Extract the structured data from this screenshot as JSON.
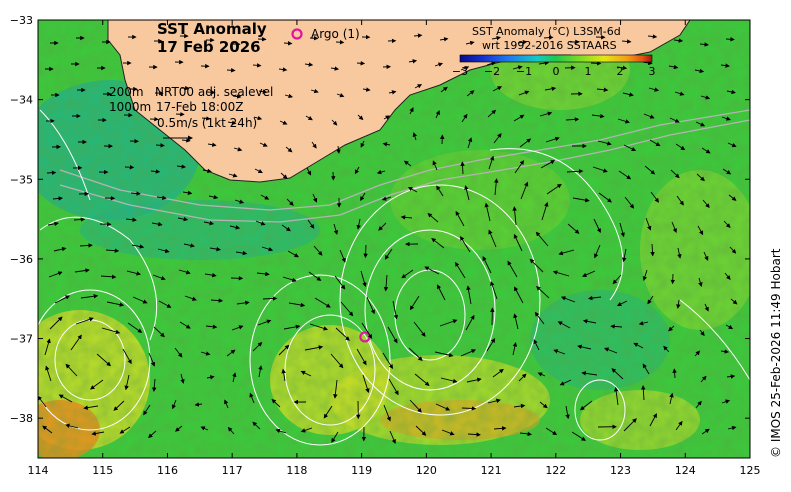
{
  "title": {
    "line1": "SST Anomaly",
    "line2": "17 Feb 2026"
  },
  "argo_legend": {
    "symbol": "O",
    "label": "Argo (1)",
    "color": "#e0169c"
  },
  "info": {
    "line1_depth": "200m",
    "line1_text": "NRT00 adj. sealevel",
    "line2_depth": "1000m",
    "line2_text": "17-Feb 18:00Z",
    "line3_text": "0.5m/s (1kt 24h)"
  },
  "colorbar": {
    "title_line1": "SST Anomaly (°C) L3SM-6d",
    "title_line2": "wrt 1992-2016 SSTAARS",
    "tick_labels": [
      "−3",
      "−2",
      "−1",
      "0",
      "1",
      "2",
      "3"
    ],
    "range": [
      -3,
      3
    ],
    "colors": [
      "#0a0a8c",
      "#1432d2",
      "#1e78f0",
      "#14c8c8",
      "#1ec850",
      "#78dc28",
      "#e6e614",
      "#f0a014",
      "#e65014",
      "#a01414"
    ]
  },
  "credit": "© IMOS 25-Feb-2026 11:49 Hobart",
  "axes": {
    "x_ticks": [
      "114",
      "115",
      "116",
      "117",
      "118",
      "119",
      "120",
      "121",
      "122",
      "123",
      "124",
      "125"
    ],
    "y_ticks": [
      "−33",
      "−34",
      "−35",
      "−36",
      "−37",
      "−38"
    ],
    "lon_range": [
      114,
      125
    ],
    "lat_range": [
      -38.5,
      -33
    ]
  },
  "argo_float": {
    "lon": 119.05,
    "lat": -36.98
  },
  "colors": {
    "land": "#f8c89e",
    "sst_green": "#3cc83c",
    "sst_light": "#8ad630",
    "sst_teal": "#20b08a",
    "sst_yellow": "#d2dc28",
    "sst_orange": "#e68c1e",
    "contour": "#ffffff",
    "isobath": "#b4b4b4"
  }
}
